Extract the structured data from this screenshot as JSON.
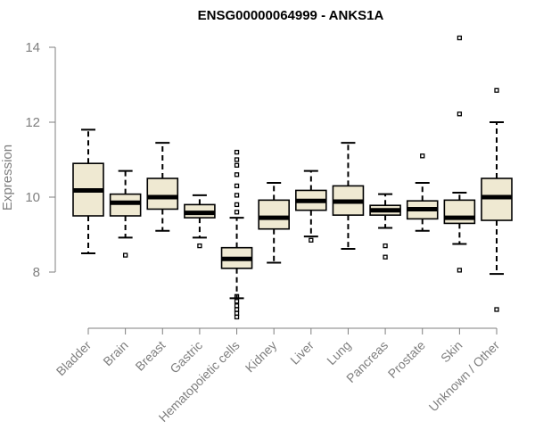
{
  "chart_data": {
    "type": "boxplot",
    "title": "ENSG00000064999 - ANKS1A",
    "xlabel": "",
    "ylabel": "Expression",
    "ylim": [
      6.6,
      14.4
    ],
    "yticks": [
      8,
      10,
      12,
      14
    ],
    "grid": false,
    "colors": {
      "box_fill": "#efe9d2",
      "stroke": "#000000",
      "axis": "#7f7f7f",
      "text": "#7f7f7f"
    },
    "categories": [
      "Bladder",
      "Brain",
      "Breast",
      "Gastric",
      "Hematopoietic cells",
      "Kidney",
      "Liver",
      "Lung",
      "Pancreas",
      "Prostate",
      "Skin",
      "Unknown / Other"
    ],
    "boxes": [
      {
        "min": 8.5,
        "q1": 9.5,
        "median": 10.18,
        "q3": 10.9,
        "max": 11.8,
        "outliers": []
      },
      {
        "min": 8.92,
        "q1": 9.5,
        "median": 9.85,
        "q3": 10.08,
        "max": 10.7,
        "outliers": [
          8.45
        ]
      },
      {
        "min": 9.1,
        "q1": 9.68,
        "median": 10.0,
        "q3": 10.5,
        "max": 11.45,
        "outliers": []
      },
      {
        "min": 8.92,
        "q1": 9.45,
        "median": 9.58,
        "q3": 9.8,
        "max": 10.05,
        "outliers": [
          8.7
        ]
      },
      {
        "min": 7.3,
        "q1": 8.1,
        "median": 8.35,
        "q3": 8.65,
        "max": 9.45,
        "outliers": [
          6.8,
          6.9,
          7.0,
          7.1,
          7.22,
          7.35,
          9.6,
          9.8,
          10.05,
          10.3,
          10.6,
          10.85,
          11.0,
          11.2
        ]
      },
      {
        "min": 8.25,
        "q1": 9.15,
        "median": 9.45,
        "q3": 9.92,
        "max": 10.38,
        "outliers": []
      },
      {
        "min": 8.95,
        "q1": 9.65,
        "median": 9.9,
        "q3": 10.18,
        "max": 10.7,
        "outliers": [
          8.85
        ]
      },
      {
        "min": 8.62,
        "q1": 9.52,
        "median": 9.88,
        "q3": 10.3,
        "max": 11.45,
        "outliers": []
      },
      {
        "min": 9.18,
        "q1": 9.52,
        "median": 9.65,
        "q3": 9.78,
        "max": 10.08,
        "outliers": [
          8.7,
          8.4
        ]
      },
      {
        "min": 9.1,
        "q1": 9.42,
        "median": 9.68,
        "q3": 9.9,
        "max": 10.38,
        "outliers": [
          11.1
        ]
      },
      {
        "min": 8.75,
        "q1": 9.3,
        "median": 9.45,
        "q3": 9.92,
        "max": 10.12,
        "outliers": [
          8.05,
          12.22,
          14.25
        ]
      },
      {
        "min": 7.95,
        "q1": 9.38,
        "median": 10.0,
        "q3": 10.5,
        "max": 12.0,
        "outliers": [
          7.0,
          12.85
        ]
      }
    ]
  }
}
